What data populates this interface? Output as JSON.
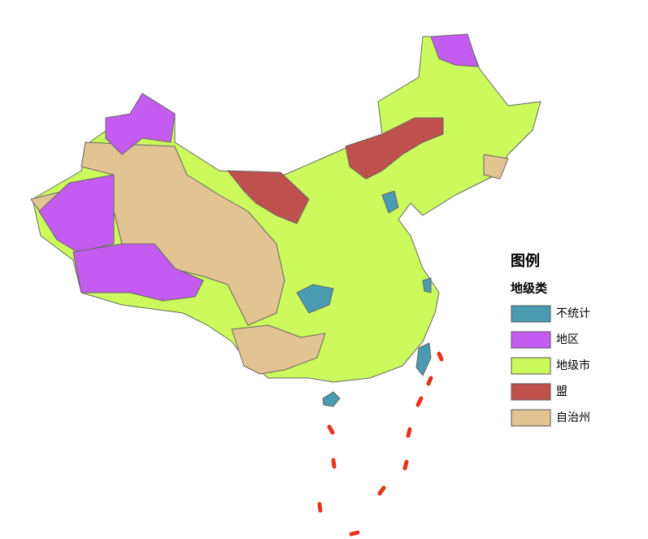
{
  "legend": {
    "title": "图例",
    "subtitle": "地级类",
    "items": [
      {
        "label": "不统计",
        "color": "#4a9bb0"
      },
      {
        "label": "地区",
        "color": "#c45cf2"
      },
      {
        "label": "地级市",
        "color": "#ccfa5c"
      },
      {
        "label": "盟",
        "color": "#c0504d"
      },
      {
        "label": "自治州",
        "color": "#e2c392"
      }
    ]
  }
}
